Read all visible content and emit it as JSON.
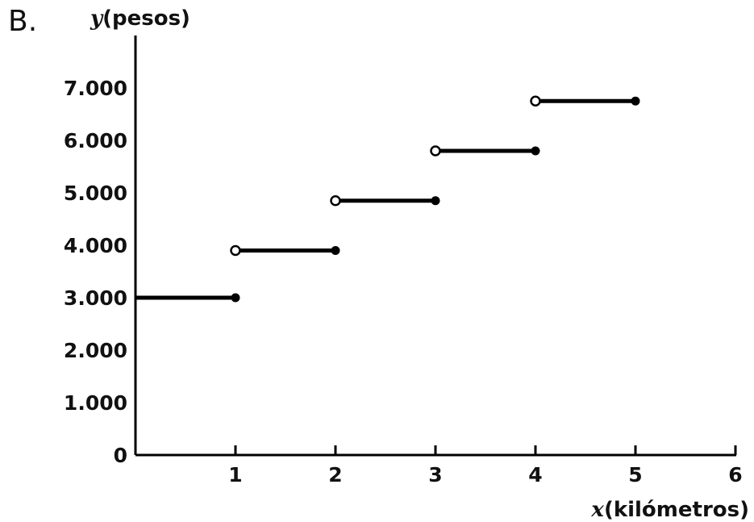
{
  "panel_label": "B.",
  "chart_data": {
    "type": "line",
    "style": "step",
    "x_axis": {
      "var": "x",
      "unit_label": "(kilómetros)",
      "range": [
        0,
        6
      ],
      "ticks": [
        {
          "value": 1,
          "label": "1"
        },
        {
          "value": 2,
          "label": "2"
        },
        {
          "value": 3,
          "label": "3"
        },
        {
          "value": 4,
          "label": "4"
        },
        {
          "value": 5,
          "label": "5"
        },
        {
          "value": 6,
          "label": "6"
        }
      ]
    },
    "y_axis": {
      "var": "y",
      "unit_label": "(pesos)",
      "range": [
        0,
        7500
      ],
      "ticks": [
        {
          "value": 0,
          "label": "0"
        },
        {
          "value": 1000,
          "label": "1.000"
        },
        {
          "value": 2000,
          "label": "2.000"
        },
        {
          "value": 3000,
          "label": "3.000"
        },
        {
          "value": 4000,
          "label": "4.000"
        },
        {
          "value": 5000,
          "label": "5.000"
        },
        {
          "value": 6000,
          "label": "6.000"
        },
        {
          "value": 7000,
          "label": "7.000"
        }
      ]
    },
    "segments": [
      {
        "x_start": 0,
        "x_end": 1,
        "y": 3000,
        "start": "none",
        "end": "closed"
      },
      {
        "x_start": 1,
        "x_end": 2,
        "y": 3900,
        "start": "open",
        "end": "closed"
      },
      {
        "x_start": 2,
        "x_end": 3,
        "y": 4850,
        "start": "open",
        "end": "closed"
      },
      {
        "x_start": 3,
        "x_end": 4,
        "y": 5800,
        "start": "open",
        "end": "closed"
      },
      {
        "x_start": 4,
        "x_end": 5,
        "y": 6750,
        "start": "open",
        "end": "closed"
      }
    ],
    "grid": false,
    "legend": "none",
    "colors": {
      "line": "#000000",
      "text": "#111111"
    }
  }
}
